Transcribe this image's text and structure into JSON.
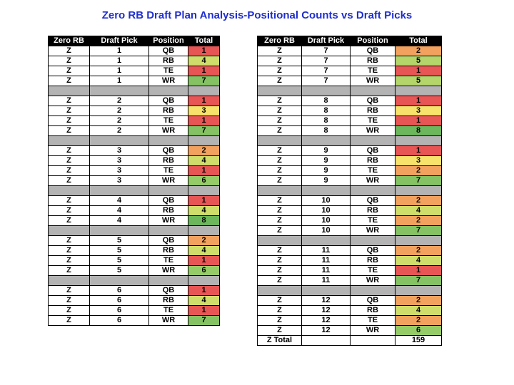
{
  "title": "Zero RB Draft Plan Analysis-Positional Counts vs Draft Picks",
  "headers": [
    "Zero RB",
    "Draft Pick",
    "Position",
    "Total"
  ],
  "colors": {
    "1": "#e85555",
    "2": "#f2a25e",
    "3": "#f7e36c",
    "4": "#cfdd6b",
    "5": "#b4d56a",
    "6": "#96cc68",
    "7": "#84c263",
    "8": "#6cb75c",
    "separator": "#b3b3b3"
  },
  "left_table": {
    "groups": [
      {
        "rows": [
          [
            "Z",
            "1",
            "QB",
            "1"
          ],
          [
            "Z",
            "1",
            "RB",
            "4"
          ],
          [
            "Z",
            "1",
            "TE",
            "1"
          ],
          [
            "Z",
            "1",
            "WR",
            "7"
          ]
        ]
      },
      {
        "rows": [
          [
            "Z",
            "2",
            "QB",
            "1"
          ],
          [
            "Z",
            "2",
            "RB",
            "3"
          ],
          [
            "Z",
            "2",
            "TE",
            "1"
          ],
          [
            "Z",
            "2",
            "WR",
            "7"
          ]
        ]
      },
      {
        "rows": [
          [
            "Z",
            "3",
            "QB",
            "2"
          ],
          [
            "Z",
            "3",
            "RB",
            "4"
          ],
          [
            "Z",
            "3",
            "TE",
            "1"
          ],
          [
            "Z",
            "3",
            "WR",
            "6"
          ]
        ]
      },
      {
        "rows": [
          [
            "Z",
            "4",
            "QB",
            "1"
          ],
          [
            "Z",
            "4",
            "RB",
            "4"
          ],
          [
            "Z",
            "4",
            "WR",
            "8"
          ]
        ]
      },
      {
        "rows": [
          [
            "Z",
            "5",
            "QB",
            "2"
          ],
          [
            "Z",
            "5",
            "RB",
            "4"
          ],
          [
            "Z",
            "5",
            "TE",
            "1"
          ],
          [
            "Z",
            "5",
            "WR",
            "6"
          ]
        ]
      },
      {
        "rows": [
          [
            "Z",
            "6",
            "QB",
            "1"
          ],
          [
            "Z",
            "6",
            "RB",
            "4"
          ],
          [
            "Z",
            "6",
            "TE",
            "1"
          ],
          [
            "Z",
            "6",
            "WR",
            "7"
          ]
        ]
      }
    ]
  },
  "right_table": {
    "groups": [
      {
        "rows": [
          [
            "Z",
            "7",
            "QB",
            "2"
          ],
          [
            "Z",
            "7",
            "RB",
            "5"
          ],
          [
            "Z",
            "7",
            "TE",
            "1"
          ],
          [
            "Z",
            "7",
            "WR",
            "5"
          ]
        ]
      },
      {
        "rows": [
          [
            "Z",
            "8",
            "QB",
            "1"
          ],
          [
            "Z",
            "8",
            "RB",
            "3"
          ],
          [
            "Z",
            "8",
            "TE",
            "1"
          ],
          [
            "Z",
            "8",
            "WR",
            "8"
          ]
        ]
      },
      {
        "rows": [
          [
            "Z",
            "9",
            "QB",
            "1"
          ],
          [
            "Z",
            "9",
            "RB",
            "3"
          ],
          [
            "Z",
            "9",
            "TE",
            "2"
          ],
          [
            "Z",
            "9",
            "WR",
            "7"
          ]
        ]
      },
      {
        "rows": [
          [
            "Z",
            "10",
            "QB",
            "2"
          ],
          [
            "Z",
            "10",
            "RB",
            "4"
          ],
          [
            "Z",
            "10",
            "TE",
            "2"
          ],
          [
            "Z",
            "10",
            "WR",
            "7"
          ]
        ]
      },
      {
        "rows": [
          [
            "Z",
            "11",
            "QB",
            "2"
          ],
          [
            "Z",
            "11",
            "RB",
            "4"
          ],
          [
            "Z",
            "11",
            "TE",
            "1"
          ],
          [
            "Z",
            "11",
            "WR",
            "7"
          ]
        ]
      },
      {
        "rows": [
          [
            "Z",
            "12",
            "QB",
            "2"
          ],
          [
            "Z",
            "12",
            "RB",
            "4"
          ],
          [
            "Z",
            "12",
            "TE",
            "2"
          ],
          [
            "Z",
            "12",
            "WR",
            "6"
          ]
        ]
      }
    ],
    "footer": {
      "label": "Z Total",
      "value": "159"
    }
  }
}
